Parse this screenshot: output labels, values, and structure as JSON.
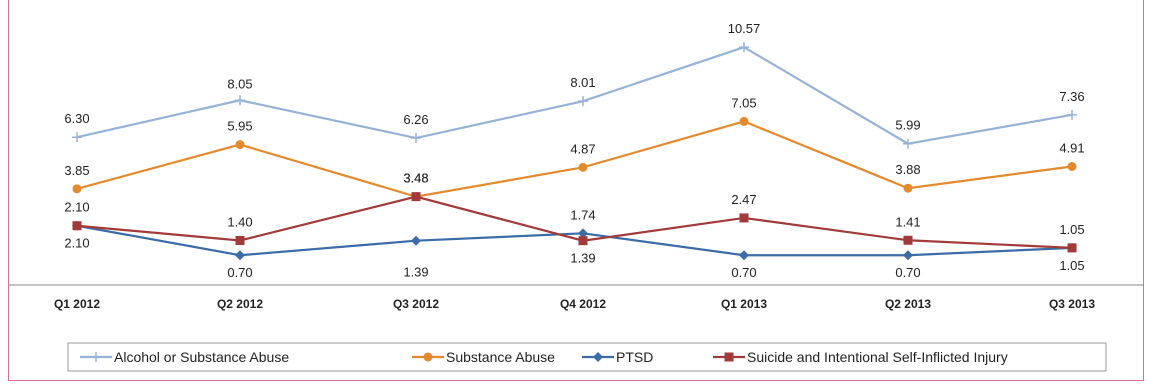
{
  "chart_data": {
    "type": "line",
    "categories": [
      "Q1 2012",
      "Q2 2012",
      "Q3 2012",
      "Q4 2012",
      "Q1 2013",
      "Q2 2013",
      "Q3 2013"
    ],
    "series": [
      {
        "name": "Alcohol or Substance Abuse",
        "values": [
          6.3,
          8.05,
          6.26,
          8.01,
          10.57,
          5.99,
          7.36
        ],
        "labels": [
          "6.30",
          "8.05",
          "6.26",
          "8.01",
          "10.57",
          "5.99",
          "7.36"
        ],
        "color": "#95b3d7",
        "marker": "plus"
      },
      {
        "name": "Substance Abuse",
        "values": [
          3.85,
          5.95,
          3.48,
          4.87,
          7.05,
          3.88,
          4.91
        ],
        "labels": [
          "3.85",
          "5.95",
          "3.48",
          "4.87",
          "7.05",
          "3.88",
          "4.91"
        ],
        "color": "#e38a2e",
        "marker": "circle"
      },
      {
        "name": "PTSD",
        "values": [
          2.1,
          0.7,
          1.39,
          1.74,
          0.7,
          0.7,
          1.05
        ],
        "labels": [
          "2.10",
          "0.70",
          "1.39",
          "1.74",
          "0.70",
          "0.70",
          "1.05"
        ],
        "color": "#3c6ca8",
        "marker": "diamond"
      },
      {
        "name": "Suicide and Intentional Self-Inflicted Injury",
        "values": [
          2.1,
          1.4,
          3.48,
          1.39,
          2.47,
          1.41,
          1.05
        ],
        "labels": [
          "2.10",
          "1.40",
          "3.48",
          "1.39",
          "2.47",
          "1.41",
          "1.05"
        ],
        "color": "#a33a3a",
        "marker": "square"
      }
    ],
    "ylim": [
      0,
      12
    ],
    "grid": false,
    "legend_position": "bottom",
    "title": "",
    "xlabel": "",
    "ylabel": ""
  },
  "colors": {
    "frame_border": "#d87093",
    "axis": "#888888"
  }
}
